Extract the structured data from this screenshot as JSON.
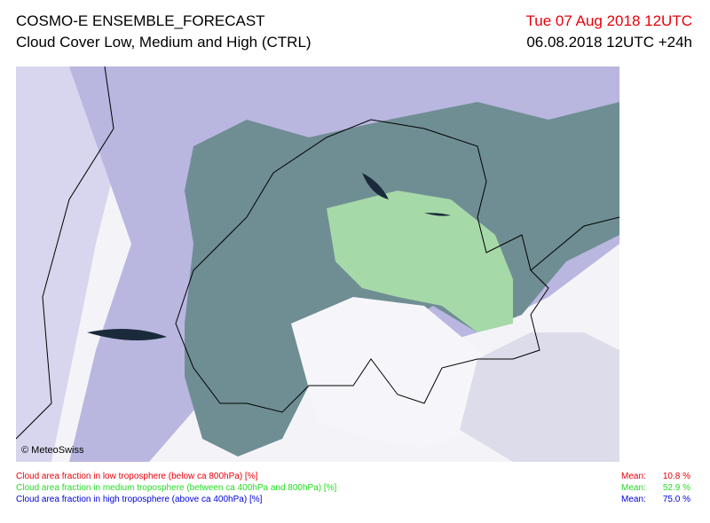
{
  "header": {
    "title": "COSMO-E ENSEMBLE_FORECAST",
    "subtitle": "Cloud Cover Low, Medium and High (CTRL)",
    "valid_time": "Tue 07 Aug 2018 12UTC",
    "run_time": "06.08.2018 12UTC +24h"
  },
  "map": {
    "credit": "© MeteoSwiss"
  },
  "legend": [
    {
      "label": "Cloud area fraction in low troposphere (below ca 800hPa) [%]",
      "mean_label": "Mean:",
      "mean": "10.8 %",
      "color": "#e8000b"
    },
    {
      "label": "Cloud area fraction in medium troposphere (between ca 400hPa and 800hPa) [%]",
      "mean_label": "Mean:",
      "mean": "52.9 %",
      "color": "#22dd22"
    },
    {
      "label": "Cloud area fraction in high troposphere (above ca 400hPa) [%]",
      "mean_label": "Mean:",
      "mean": "75.0 %",
      "color": "#0000dd"
    }
  ]
}
